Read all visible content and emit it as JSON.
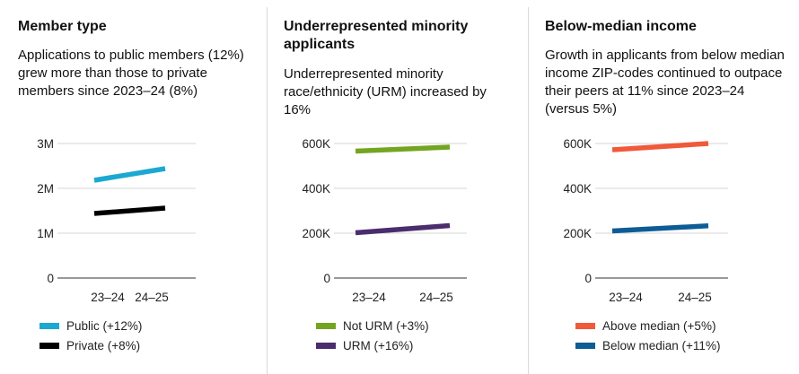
{
  "panels": [
    {
      "title": "Member type",
      "description": "Applications to public members (12%) grew more than those to private members since 2023–24 (8%)",
      "chart_data": {
        "type": "line",
        "categories": [
          "23–24",
          "24–25"
        ],
        "yticks": [
          "0",
          "1M",
          "2M",
          "3M"
        ],
        "ylim": [
          0,
          3000000
        ],
        "grid": true,
        "legend_position": "bottom",
        "series": [
          {
            "name": "Public (+12%)",
            "color": "#1ba8d1",
            "values": [
              2180000,
              2440000
            ]
          },
          {
            "name": "Private (+8%)",
            "color": "#000000",
            "values": [
              1440000,
              1560000
            ]
          }
        ]
      }
    },
    {
      "title": "Underrepresented minority applicants",
      "description": "Underrepresented minority race/ethnicity (URM) increased by 16%",
      "chart_data": {
        "type": "line",
        "categories": [
          "23–24",
          "24–25"
        ],
        "yticks": [
          "0",
          "200K",
          "400K",
          "600K"
        ],
        "ylim": [
          0,
          600000
        ],
        "grid": true,
        "legend_position": "bottom",
        "series": [
          {
            "name": "Not URM (+3%)",
            "color": "#74a520",
            "values": [
              566000,
              584000
            ]
          },
          {
            "name": "URM (+16%)",
            "color": "#4b2d6e",
            "values": [
              202000,
              234000
            ]
          }
        ]
      }
    },
    {
      "title": "Below-median income",
      "description": "Growth in applicants from below median income ZIP-codes continued to outpace their peers at 11% since 2023–24 (versus 5%)",
      "chart_data": {
        "type": "line",
        "categories": [
          "23–24",
          "24–25"
        ],
        "yticks": [
          "0",
          "200K",
          "400K",
          "600K"
        ],
        "ylim": [
          0,
          600000
        ],
        "grid": true,
        "legend_position": "bottom",
        "series": [
          {
            "name": "Above median (+5%)",
            "color": "#f0593a",
            "values": [
              572000,
              600000
            ]
          },
          {
            "name": "Below median (+11%)",
            "color": "#0d5c96",
            "values": [
              210000,
              233000
            ]
          }
        ]
      }
    }
  ]
}
